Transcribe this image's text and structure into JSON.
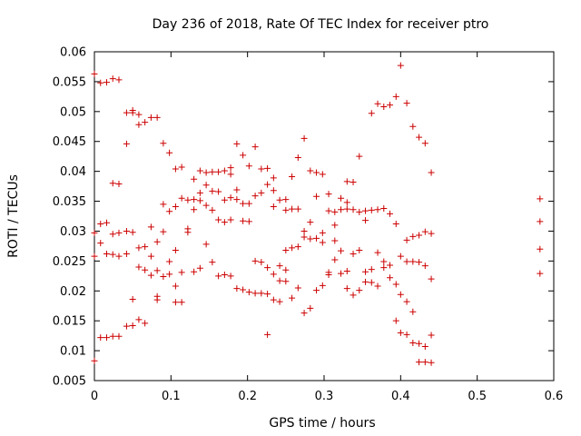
{
  "chart_data": {
    "type": "scatter",
    "title": "Day 236 of 2018, Rate Of TEC Index for receiver ptro",
    "xlabel": "GPS time / hours",
    "ylabel": "ROTI / TECUs",
    "xlim": [
      0,
      0.6
    ],
    "ylim": [
      0.005,
      0.06
    ],
    "xticks": [
      0,
      0.1,
      0.2,
      0.3,
      0.4,
      0.5,
      0.6
    ],
    "xtick_labels": [
      "0",
      "0.1",
      "0.2",
      "0.3",
      "0.4",
      "0.5",
      "0.6"
    ],
    "yticks": [
      0.005,
      0.01,
      0.015,
      0.02,
      0.025,
      0.03,
      0.035,
      0.04,
      0.045,
      0.05,
      0.055,
      0.06
    ],
    "ytick_labels": [
      "0.005",
      "0.01",
      "0.015",
      "0.02",
      "0.025",
      "0.03",
      "0.035",
      "0.04",
      "0.045",
      "0.05",
      "0.055",
      "0.06"
    ],
    "grid": false,
    "marker": "+",
    "marker_color": "#cc0000",
    "points": [
      [
        0.0,
        0.0563
      ],
      [
        0.0,
        0.0297
      ],
      [
        0.0,
        0.0258
      ],
      [
        0.0,
        0.0083
      ],
      [
        0.008,
        0.0548
      ],
      [
        0.008,
        0.0312
      ],
      [
        0.008,
        0.028
      ],
      [
        0.008,
        0.0122
      ],
      [
        0.016,
        0.0549
      ],
      [
        0.016,
        0.0314
      ],
      [
        0.016,
        0.0262
      ],
      [
        0.016,
        0.0122
      ],
      [
        0.024,
        0.0555
      ],
      [
        0.024,
        0.038
      ],
      [
        0.024,
        0.0295
      ],
      [
        0.024,
        0.0261
      ],
      [
        0.024,
        0.0124
      ],
      [
        0.032,
        0.0553
      ],
      [
        0.032,
        0.0379
      ],
      [
        0.032,
        0.0297
      ],
      [
        0.032,
        0.0258
      ],
      [
        0.032,
        0.0124
      ],
      [
        0.042,
        0.0498
      ],
      [
        0.042,
        0.0446
      ],
      [
        0.042,
        0.03
      ],
      [
        0.042,
        0.0262
      ],
      [
        0.042,
        0.0141
      ],
      [
        0.05,
        0.0502
      ],
      [
        0.05,
        0.0498
      ],
      [
        0.05,
        0.0298
      ],
      [
        0.05,
        0.0186
      ],
      [
        0.05,
        0.0142
      ],
      [
        0.058,
        0.0495
      ],
      [
        0.058,
        0.0478
      ],
      [
        0.058,
        0.0272
      ],
      [
        0.058,
        0.024
      ],
      [
        0.058,
        0.0152
      ],
      [
        0.066,
        0.0482
      ],
      [
        0.066,
        0.0274
      ],
      [
        0.066,
        0.0235
      ],
      [
        0.066,
        0.0146
      ],
      [
        0.074,
        0.049
      ],
      [
        0.074,
        0.0307
      ],
      [
        0.074,
        0.0258
      ],
      [
        0.074,
        0.0226
      ],
      [
        0.082,
        0.049
      ],
      [
        0.082,
        0.0282
      ],
      [
        0.082,
        0.0234
      ],
      [
        0.082,
        0.0191
      ],
      [
        0.082,
        0.0185
      ],
      [
        0.09,
        0.0447
      ],
      [
        0.09,
        0.0345
      ],
      [
        0.09,
        0.0299
      ],
      [
        0.09,
        0.0224
      ],
      [
        0.098,
        0.0431
      ],
      [
        0.098,
        0.0333
      ],
      [
        0.098,
        0.0249
      ],
      [
        0.098,
        0.0228
      ],
      [
        0.106,
        0.0404
      ],
      [
        0.106,
        0.0341
      ],
      [
        0.106,
        0.0268
      ],
      [
        0.106,
        0.0208
      ],
      [
        0.106,
        0.0181
      ],
      [
        0.114,
        0.0407
      ],
      [
        0.114,
        0.0355
      ],
      [
        0.114,
        0.0231
      ],
      [
        0.114,
        0.0181
      ],
      [
        0.122,
        0.0352
      ],
      [
        0.122,
        0.0304
      ],
      [
        0.122,
        0.0298
      ],
      [
        0.13,
        0.0387
      ],
      [
        0.13,
        0.0353
      ],
      [
        0.13,
        0.0336
      ],
      [
        0.13,
        0.0232
      ],
      [
        0.138,
        0.0401
      ],
      [
        0.138,
        0.0364
      ],
      [
        0.138,
        0.0351
      ],
      [
        0.138,
        0.0238
      ],
      [
        0.146,
        0.0398
      ],
      [
        0.146,
        0.0377
      ],
      [
        0.146,
        0.0343
      ],
      [
        0.146,
        0.0278
      ],
      [
        0.154,
        0.0399
      ],
      [
        0.154,
        0.0367
      ],
      [
        0.154,
        0.0335
      ],
      [
        0.154,
        0.0248
      ],
      [
        0.162,
        0.0399
      ],
      [
        0.162,
        0.0366
      ],
      [
        0.162,
        0.0319
      ],
      [
        0.162,
        0.0225
      ],
      [
        0.17,
        0.0401
      ],
      [
        0.17,
        0.0352
      ],
      [
        0.17,
        0.0315
      ],
      [
        0.17,
        0.0227
      ],
      [
        0.178,
        0.0406
      ],
      [
        0.178,
        0.0395
      ],
      [
        0.178,
        0.0356
      ],
      [
        0.178,
        0.0319
      ],
      [
        0.178,
        0.0225
      ],
      [
        0.186,
        0.0446
      ],
      [
        0.186,
        0.0369
      ],
      [
        0.186,
        0.0353
      ],
      [
        0.186,
        0.0204
      ],
      [
        0.194,
        0.0427
      ],
      [
        0.194,
        0.0346
      ],
      [
        0.194,
        0.0317
      ],
      [
        0.194,
        0.0202
      ],
      [
        0.202,
        0.0409
      ],
      [
        0.202,
        0.0346
      ],
      [
        0.202,
        0.0316
      ],
      [
        0.202,
        0.0198
      ],
      [
        0.21,
        0.0441
      ],
      [
        0.21,
        0.0359
      ],
      [
        0.21,
        0.025
      ],
      [
        0.21,
        0.0196
      ],
      [
        0.218,
        0.0404
      ],
      [
        0.218,
        0.0364
      ],
      [
        0.218,
        0.0248
      ],
      [
        0.218,
        0.0196
      ],
      [
        0.226,
        0.0405
      ],
      [
        0.226,
        0.0378
      ],
      [
        0.226,
        0.0239
      ],
      [
        0.226,
        0.0195
      ],
      [
        0.226,
        0.0127
      ],
      [
        0.234,
        0.0389
      ],
      [
        0.234,
        0.0368
      ],
      [
        0.234,
        0.0341
      ],
      [
        0.234,
        0.0228
      ],
      [
        0.234,
        0.0185
      ],
      [
        0.242,
        0.0352
      ],
      [
        0.242,
        0.0242
      ],
      [
        0.242,
        0.0217
      ],
      [
        0.242,
        0.0182
      ],
      [
        0.25,
        0.0353
      ],
      [
        0.25,
        0.0335
      ],
      [
        0.25,
        0.0268
      ],
      [
        0.25,
        0.0235
      ],
      [
        0.25,
        0.0216
      ],
      [
        0.258,
        0.0391
      ],
      [
        0.258,
        0.0337
      ],
      [
        0.258,
        0.0272
      ],
      [
        0.258,
        0.0188
      ],
      [
        0.266,
        0.0423
      ],
      [
        0.266,
        0.0337
      ],
      [
        0.266,
        0.0274
      ],
      [
        0.266,
        0.0205
      ],
      [
        0.274,
        0.0455
      ],
      [
        0.274,
        0.03
      ],
      [
        0.274,
        0.029
      ],
      [
        0.274,
        0.0163
      ],
      [
        0.282,
        0.0401
      ],
      [
        0.282,
        0.0315
      ],
      [
        0.282,
        0.0287
      ],
      [
        0.282,
        0.0171
      ],
      [
        0.29,
        0.0398
      ],
      [
        0.29,
        0.0358
      ],
      [
        0.29,
        0.0288
      ],
      [
        0.29,
        0.0201
      ],
      [
        0.298,
        0.0395
      ],
      [
        0.298,
        0.0297
      ],
      [
        0.298,
        0.0281
      ],
      [
        0.298,
        0.0209
      ],
      [
        0.306,
        0.0362
      ],
      [
        0.306,
        0.0334
      ],
      [
        0.306,
        0.0231
      ],
      [
        0.306,
        0.0227
      ],
      [
        0.314,
        0.0332
      ],
      [
        0.314,
        0.031
      ],
      [
        0.314,
        0.0284
      ],
      [
        0.314,
        0.0252
      ],
      [
        0.322,
        0.0355
      ],
      [
        0.322,
        0.0336
      ],
      [
        0.322,
        0.0267
      ],
      [
        0.322,
        0.0229
      ],
      [
        0.33,
        0.0383
      ],
      [
        0.33,
        0.0348
      ],
      [
        0.33,
        0.0337
      ],
      [
        0.33,
        0.0233
      ],
      [
        0.33,
        0.0204
      ],
      [
        0.338,
        0.0382
      ],
      [
        0.338,
        0.0336
      ],
      [
        0.338,
        0.0262
      ],
      [
        0.338,
        0.0193
      ],
      [
        0.346,
        0.0425
      ],
      [
        0.346,
        0.0332
      ],
      [
        0.346,
        0.0268
      ],
      [
        0.346,
        0.0201
      ],
      [
        0.354,
        0.0334
      ],
      [
        0.354,
        0.0318
      ],
      [
        0.354,
        0.0232
      ],
      [
        0.354,
        0.0215
      ],
      [
        0.362,
        0.0497
      ],
      [
        0.362,
        0.0335
      ],
      [
        0.362,
        0.0236
      ],
      [
        0.362,
        0.0214
      ],
      [
        0.37,
        0.0513
      ],
      [
        0.37,
        0.0336
      ],
      [
        0.37,
        0.0264
      ],
      [
        0.37,
        0.0208
      ],
      [
        0.378,
        0.0508
      ],
      [
        0.378,
        0.0338
      ],
      [
        0.378,
        0.0249
      ],
      [
        0.378,
        0.0239
      ],
      [
        0.386,
        0.0511
      ],
      [
        0.386,
        0.0329
      ],
      [
        0.386,
        0.0243
      ],
      [
        0.386,
        0.0222
      ],
      [
        0.394,
        0.0525
      ],
      [
        0.394,
        0.0312
      ],
      [
        0.394,
        0.0211
      ],
      [
        0.394,
        0.015
      ],
      [
        0.4,
        0.0577
      ],
      [
        0.4,
        0.0258
      ],
      [
        0.4,
        0.0194
      ],
      [
        0.4,
        0.013
      ],
      [
        0.408,
        0.0514
      ],
      [
        0.408,
        0.0285
      ],
      [
        0.408,
        0.0249
      ],
      [
        0.408,
        0.0182
      ],
      [
        0.408,
        0.0127
      ],
      [
        0.416,
        0.0475
      ],
      [
        0.416,
        0.0291
      ],
      [
        0.416,
        0.0249
      ],
      [
        0.416,
        0.0165
      ],
      [
        0.416,
        0.0113
      ],
      [
        0.424,
        0.0457
      ],
      [
        0.424,
        0.0293
      ],
      [
        0.424,
        0.0248
      ],
      [
        0.424,
        0.0112
      ],
      [
        0.424,
        0.0081
      ],
      [
        0.432,
        0.0447
      ],
      [
        0.432,
        0.0299
      ],
      [
        0.432,
        0.0242
      ],
      [
        0.432,
        0.0107
      ],
      [
        0.432,
        0.0081
      ],
      [
        0.44,
        0.0398
      ],
      [
        0.44,
        0.0296
      ],
      [
        0.44,
        0.022
      ],
      [
        0.44,
        0.0126
      ],
      [
        0.44,
        0.008
      ],
      [
        0.582,
        0.0354
      ],
      [
        0.582,
        0.0316
      ],
      [
        0.582,
        0.027
      ],
      [
        0.582,
        0.0229
      ]
    ]
  }
}
